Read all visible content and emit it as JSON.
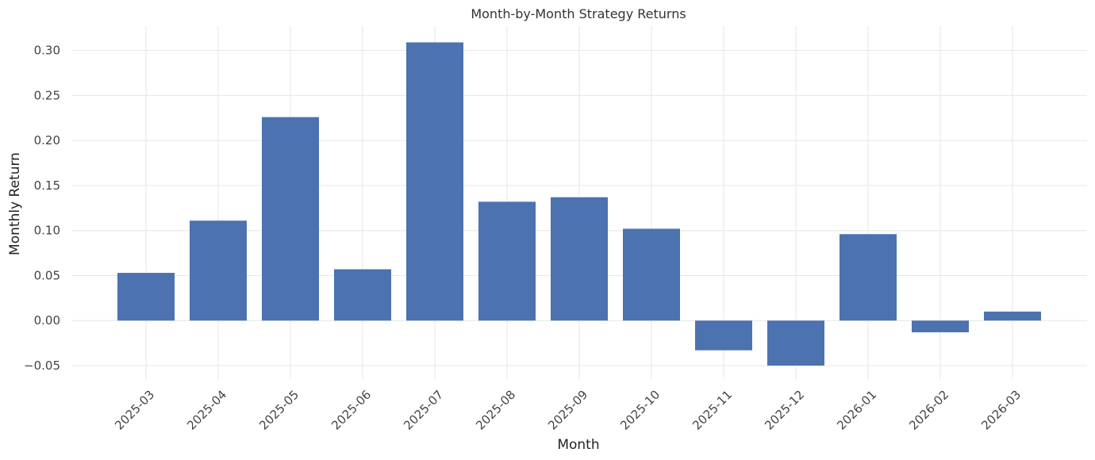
{
  "chart_data": {
    "type": "bar",
    "title": "Month-by-Month Strategy Returns",
    "xlabel": "Month",
    "ylabel": "Monthly Return",
    "categories": [
      "2025-03",
      "2025-04",
      "2025-05",
      "2025-06",
      "2025-07",
      "2025-08",
      "2025-09",
      "2025-10",
      "2025-11",
      "2025-12",
      "2026-01",
      "2026-02",
      "2026-03"
    ],
    "values": [
      0.053,
      0.111,
      0.226,
      0.057,
      0.309,
      0.132,
      0.137,
      0.102,
      -0.033,
      -0.05,
      0.096,
      -0.013,
      0.01
    ],
    "ylim": [
      -0.065,
      0.327
    ],
    "yticks": [
      -0.05,
      0.0,
      0.05,
      0.1,
      0.15,
      0.2,
      0.25,
      0.3
    ],
    "ytick_labels": [
      "−0.05",
      "0.00",
      "0.05",
      "0.10",
      "0.15",
      "0.20",
      "0.25",
      "0.30"
    ],
    "grid": true,
    "bar_color": "#4c72b0",
    "grid_color": "#e6e6e6"
  }
}
